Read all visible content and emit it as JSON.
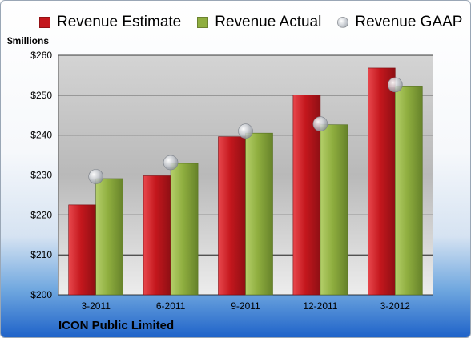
{
  "legend": {
    "estimate": "Revenue Estimate",
    "actual": "Revenue Actual",
    "gaap": "Revenue GAAP"
  },
  "unit_label": "$millions",
  "company": "ICON Public Limited",
  "colors": {
    "estimate": "#c4171d",
    "actual": "#8fae3f",
    "gaap": "#c9ccd2"
  },
  "chart_data": {
    "type": "bar",
    "categories": [
      "3-2011",
      "6-2011",
      "9-2011",
      "12-2011",
      "3-2012"
    ],
    "series": [
      {
        "name": "Revenue Estimate",
        "values": [
          222.5,
          229.8,
          239.6,
          250.1,
          256.8
        ]
      },
      {
        "name": "Revenue Actual",
        "values": [
          229.1,
          232.9,
          240.5,
          242.6,
          252.3
        ]
      },
      {
        "name": "Revenue GAAP",
        "values": [
          229.6,
          233.1,
          241.0,
          242.8,
          252.6
        ]
      }
    ],
    "ylim": [
      200,
      260
    ],
    "yticks": [
      "$200",
      "$210",
      "$220",
      "$230",
      "$240",
      "$250",
      "$260"
    ],
    "grid": true,
    "legend_position": "top"
  }
}
